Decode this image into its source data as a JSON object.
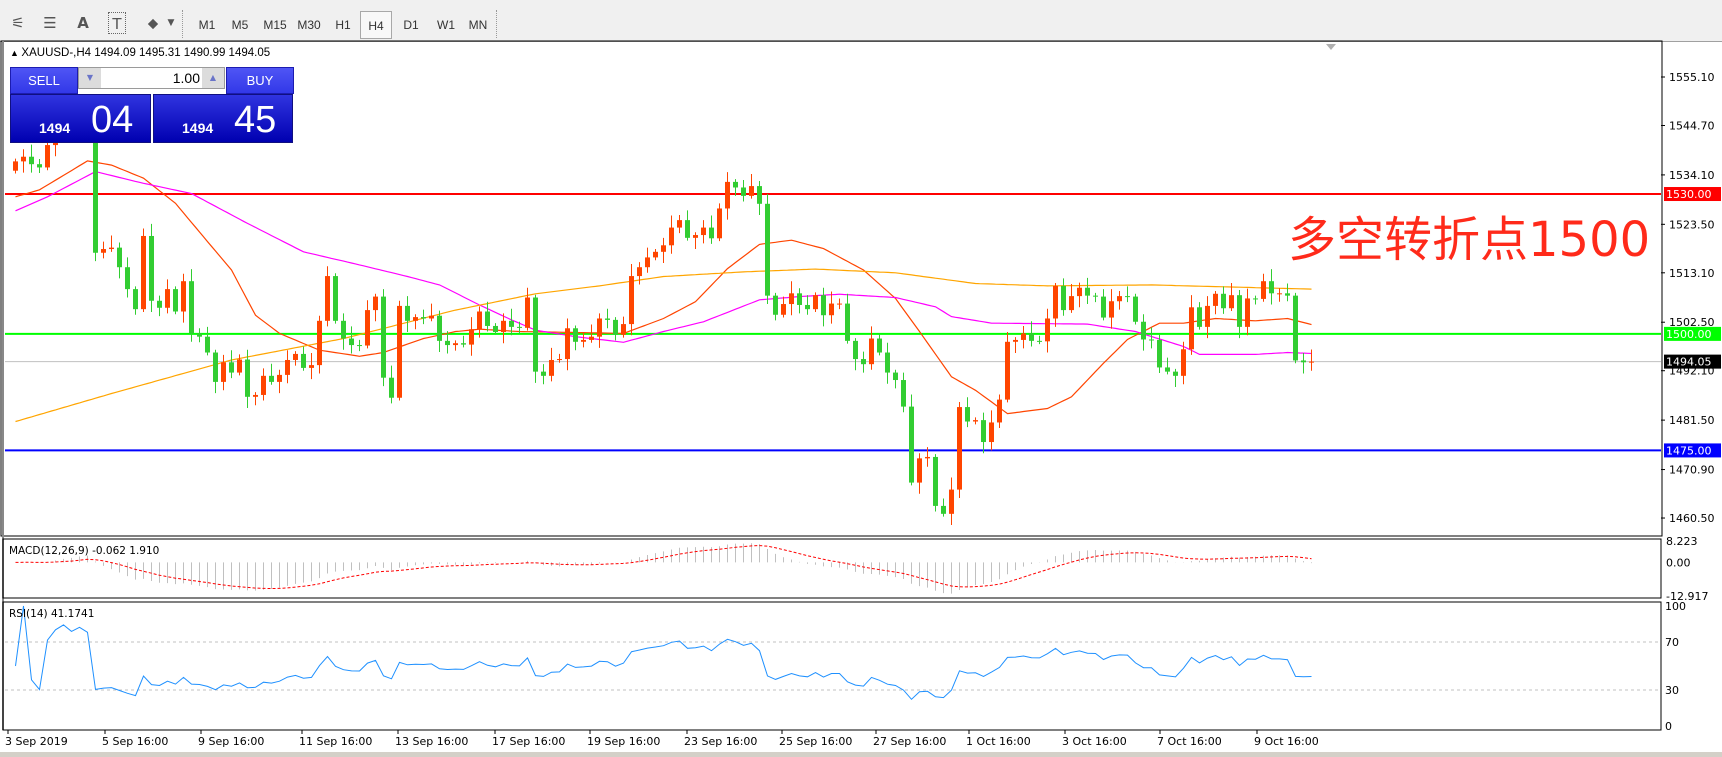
{
  "toolbar": {
    "icons": [
      "fibonacci-expansion-icon",
      "fibonacci-fan-icon",
      "text-icon",
      "text-label-icon",
      "arrows-icon"
    ],
    "icon_glyphs": [
      "⚟",
      "☰",
      "A",
      "T",
      "⬥"
    ],
    "timeframes": [
      "M1",
      "M5",
      "M15",
      "M30",
      "H1",
      "H4",
      "D1",
      "W1",
      "MN"
    ],
    "active_timeframe": "H4"
  },
  "chart": {
    "header": "XAUUSD-,H4  1494.09 1495.31 1490.99 1494.05",
    "symbol": "XAUUSD-",
    "timeframe": "H4",
    "ohlc": {
      "open": 1494.09,
      "high": 1495.31,
      "low": 1490.99,
      "close": 1494.05
    },
    "annotation": "多空转折点1500",
    "annotation_color": "#ff2a1a",
    "bull_color": "#ff4500",
    "bear_color": "#32cd32"
  },
  "trade_panel": {
    "sell_label": "SELL",
    "buy_label": "BUY",
    "lot": "1.00",
    "sell_price_small": "1494",
    "sell_price_big": "04",
    "buy_price_small": "1494",
    "buy_price_big": "45"
  },
  "price_axis": {
    "labels": [
      "1555.10",
      "1544.70",
      "1534.10",
      "1523.50",
      "1513.10",
      "1502.50",
      "1492.10",
      "1481.50",
      "1470.90",
      "1460.50"
    ]
  },
  "levels": [
    {
      "price": 1530.0,
      "label": "1530.00",
      "color": "#ff0000"
    },
    {
      "price": 1500.0,
      "label": "1500.00",
      "color": "#00ff00"
    },
    {
      "price": 1475.0,
      "label": "1475.00",
      "color": "#0000ff"
    },
    {
      "price": 1494.05,
      "label": "1494.05",
      "color": "#000000",
      "line": "#c0c0c0"
    }
  ],
  "chart_data": {
    "type": "candlestick",
    "closes": [
      1537,
      1538,
      1536.4,
      1535.7,
      1540.5,
      1544,
      1547,
      1546,
      1549,
      1548,
      1517.4,
      1518.2,
      1518.5,
      1514.3,
      1509.6,
      1505.3,
      1521.0,
      1507.1,
      1505.6,
      1509.6,
      1504.8,
      1511.3,
      1500.1,
      1499.4,
      1496.0,
      1489.7,
      1493.9,
      1491.7,
      1494.5,
      1486.5,
      1486.9,
      1491.0,
      1489.7,
      1491.2,
      1494.4,
      1495.7,
      1492.7,
      1493.3,
      1502.8,
      1512.4,
      1502.8,
      1499.0,
      1497.6,
      1497.5,
      1505.1,
      1508.0,
      1490.6,
      1486.3,
      1506.0,
      1502.8,
      1503.6,
      1503.3,
      1503.9,
      1498.5,
      1497.6,
      1498.0,
      1497.7,
      1501.0,
      1504.8,
      1501.7,
      1500.4,
      1502.8,
      1501.5,
      1501.3,
      1507.8,
      1491.9,
      1491.0,
      1494.4,
      1494.6,
      1501.2,
      1498.3,
      1498.7,
      1499.4,
      1503.3,
      1503.0,
      1499.8,
      1502.1,
      1512.4,
      1514.3,
      1516.4,
      1517.6,
      1519.0,
      1522.8,
      1524.4,
      1520.6,
      1521.2,
      1522.8,
      1520.5,
      1526.9,
      1532.6,
      1531.4,
      1529.6,
      1531.7,
      1527.9,
      1508.2,
      1504.1,
      1506.4,
      1508.7,
      1506.2,
      1505.3,
      1508.3,
      1504.0,
      1506.5,
      1506.5,
      1498.5,
      1494.6,
      1493.5,
      1499.0,
      1496.0,
      1491.7,
      1490.1,
      1484.4,
      1468.1,
      1473.3,
      1473.6,
      1463.1,
      1461.4,
      1466.6,
      1484.3,
      1481.2,
      1481.5,
      1476.8,
      1481.0,
      1485.9,
      1498.3,
      1498.7,
      1500.1,
      1498.5,
      1498.4,
      1503.3,
      1510.3,
      1505.1,
      1508.1,
      1509.9,
      1508.2,
      1508.0,
      1503.5,
      1507.0,
      1508.1,
      1508.0,
      1502.6,
      1498.8,
      1498.7,
      1492.8,
      1491.9,
      1491.0,
      1496.7,
      1505.7,
      1501.5,
      1506.0,
      1508.6,
      1505.5,
      1508.3,
      1501.5,
      1507.6,
      1507.5,
      1511.3,
      1508.7,
      1508.7,
      1508.2,
      1494.3,
      1493.9,
      1494.05
    ],
    "first_open": 1535,
    "moving_averages": [
      {
        "color": "#ff4500",
        "points": [
          [
            0,
            1529.4
          ],
          [
            3,
            1530.9
          ],
          [
            9,
            1537.1
          ],
          [
            12,
            1536.2
          ],
          [
            16,
            1533.4
          ],
          [
            20,
            1528
          ],
          [
            24,
            1519.8
          ],
          [
            27,
            1513.7
          ],
          [
            30,
            1504
          ],
          [
            33,
            1500.1
          ],
          [
            38,
            1496.5
          ],
          [
            43,
            1495.2
          ],
          [
            46,
            1496
          ],
          [
            51,
            1499
          ],
          [
            55,
            1500.5
          ],
          [
            58,
            1501
          ],
          [
            63,
            1500.5
          ],
          [
            70,
            1500.3
          ],
          [
            76,
            1500.1
          ],
          [
            81,
            1503.3
          ],
          [
            85,
            1506.9
          ],
          [
            89,
            1514
          ],
          [
            93,
            1519.2
          ],
          [
            97,
            1520.1
          ],
          [
            101,
            1518.3
          ],
          [
            106,
            1513.7
          ],
          [
            110,
            1507.6
          ],
          [
            113,
            1500.5
          ],
          [
            117,
            1490.8
          ],
          [
            120,
            1487.9
          ],
          [
            124,
            1482.9
          ],
          [
            129,
            1484
          ],
          [
            132,
            1486.5
          ],
          [
            136,
            1493.7
          ],
          [
            139,
            1498.8
          ],
          [
            143,
            1502.3
          ],
          [
            146,
            1502.3
          ],
          [
            150,
            1503.3
          ],
          [
            155,
            1502.8
          ],
          [
            159,
            1503.3
          ],
          [
            162,
            1502
          ]
        ]
      },
      {
        "color": "#ff00ff",
        "points": [
          [
            0,
            1526.4
          ],
          [
            4,
            1529.4
          ],
          [
            10,
            1534.8
          ],
          [
            16,
            1532.3
          ],
          [
            22,
            1530.1
          ],
          [
            29,
            1523.7
          ],
          [
            36,
            1517.6
          ],
          [
            43,
            1514.8
          ],
          [
            49,
            1512.3
          ],
          [
            53,
            1510.5
          ],
          [
            58,
            1506.2
          ],
          [
            62,
            1503
          ],
          [
            65,
            1500.8
          ],
          [
            70,
            1499.4
          ],
          [
            76,
            1498.2
          ],
          [
            81,
            1500.5
          ],
          [
            86,
            1502.6
          ],
          [
            93,
            1507.3
          ],
          [
            98,
            1508
          ],
          [
            103,
            1508.5
          ],
          [
            110,
            1507.8
          ],
          [
            115,
            1505.8
          ],
          [
            117,
            1503.7
          ],
          [
            122,
            1502.3
          ],
          [
            134,
            1502.1
          ],
          [
            140,
            1500.5
          ],
          [
            146,
            1497.3
          ],
          [
            148,
            1495.6
          ],
          [
            155,
            1495.6
          ],
          [
            159,
            1496
          ],
          [
            162,
            1495.8
          ]
        ]
      },
      {
        "color": "#ffa500",
        "points": [
          [
            0,
            1481.2
          ],
          [
            12,
            1487.2
          ],
          [
            27,
            1494.4
          ],
          [
            41,
            1499
          ],
          [
            55,
            1505.1
          ],
          [
            65,
            1508.6
          ],
          [
            73,
            1510.3
          ],
          [
            81,
            1512.3
          ],
          [
            91,
            1513.3
          ],
          [
            100,
            1513.9
          ],
          [
            110,
            1513.1
          ],
          [
            120,
            1510.8
          ],
          [
            129,
            1510.3
          ],
          [
            142,
            1510.5
          ],
          [
            162,
            1509.6
          ]
        ]
      }
    ],
    "time_labels": [
      "3 Sep 2019",
      "5 Sep 16:00",
      "9 Sep 16:00",
      "11 Sep 16:00",
      "13 Sep 16:00",
      "17 Sep 16:00",
      "19 Sep 16:00",
      "23 Sep 16:00",
      "25 Sep 16:00",
      "27 Sep 16:00",
      "1 Oct 16:00",
      "3 Oct 16:00",
      "7 Oct 16:00",
      "9 Oct 16:00"
    ],
    "ylim": [
      1460.5,
      1555.1
    ]
  },
  "macd": {
    "header": "MACD(12,26,9) -0.062 1.910",
    "labels": [
      "8.223",
      "0.00",
      "-12.917"
    ],
    "max": 8.223,
    "min": -12.917,
    "hist_color": "#c0c0c0",
    "signal_color": "#ff0000"
  },
  "rsi": {
    "header": "RSI(14) 41.1741",
    "labels": [
      "100",
      "70",
      "30",
      "0"
    ],
    "levels": [
      70,
      30
    ],
    "line_color": "#1e90ff",
    "value": 41.1741
  }
}
